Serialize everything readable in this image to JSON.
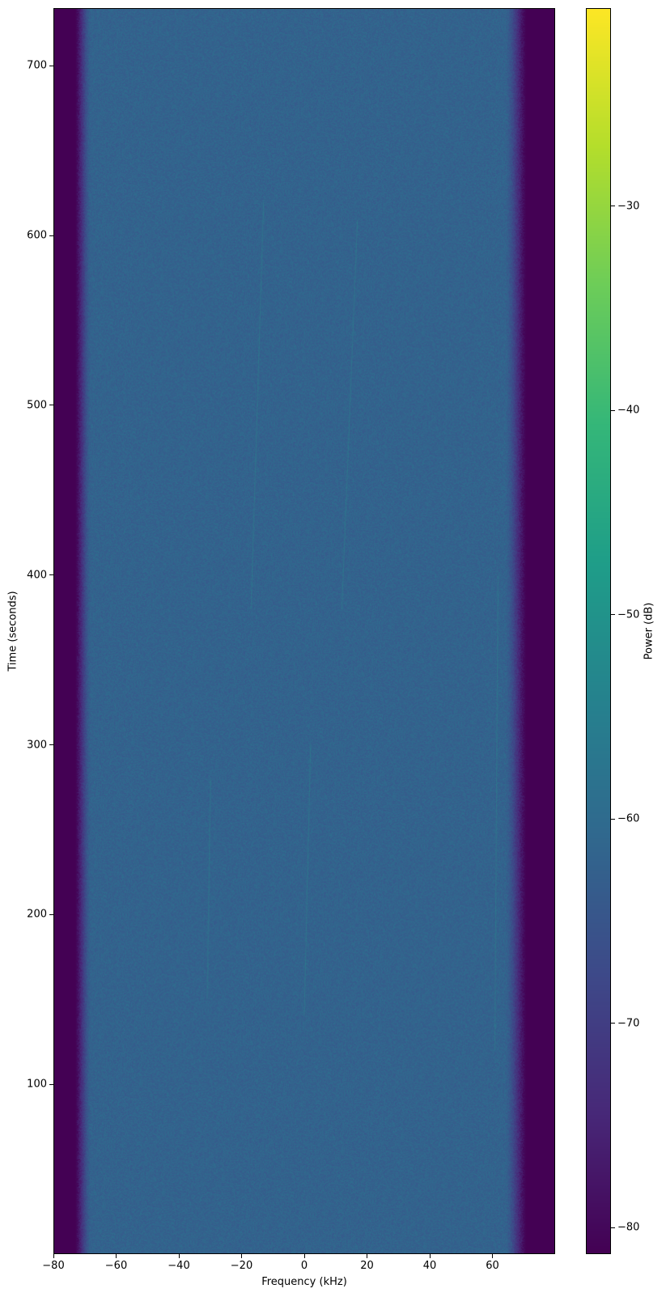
{
  "chart_data": {
    "type": "heatmap",
    "title": "",
    "xlabel": "Frequency (kHz)",
    "ylabel": "Time (seconds)",
    "xlim": [
      -80,
      80
    ],
    "ylim": [
      0,
      734
    ],
    "xticks": [
      -80,
      -60,
      -40,
      -20,
      0,
      20,
      40,
      60
    ],
    "xtick_labels": [
      "−80",
      "−60",
      "−40",
      "−20",
      "0",
      "20",
      "40",
      "60"
    ],
    "yticks": [
      100,
      200,
      300,
      400,
      500,
      600,
      700
    ],
    "ytick_labels": [
      "100",
      "200",
      "300",
      "400",
      "500",
      "600",
      "700"
    ],
    "colorbar": {
      "label": "Power (dB)",
      "colormap": "viridis",
      "range": [
        -81.3,
        -20.3
      ],
      "ticks": [
        -80,
        -70,
        -60,
        -50,
        -40,
        -30
      ],
      "tick_labels": [
        "−80",
        "−70",
        "−60",
        "−50",
        "−40",
        "−30"
      ]
    },
    "power_profile": {
      "passband_level_db": -62,
      "edge_level_db": -82,
      "rolloff_start_khz": [
        -68,
        64
      ],
      "rolloff_end_khz": [
        -74,
        72
      ]
    },
    "grid": false
  }
}
